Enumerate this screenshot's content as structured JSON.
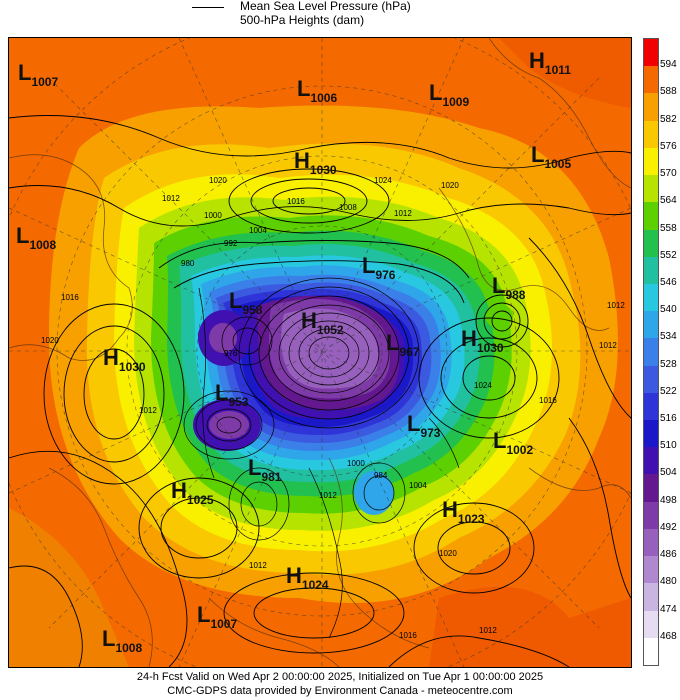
{
  "legend": {
    "line_label": "Mean Sea Level Pressure (hPa)",
    "fill_label": "500-hPa Heights (dam)"
  },
  "colorbar": {
    "ticks": [
      "594",
      "588",
      "582",
      "576",
      "570",
      "564",
      "558",
      "552",
      "546",
      "540",
      "534",
      "528",
      "522",
      "516",
      "510",
      "504",
      "498",
      "492",
      "486",
      "480",
      "474",
      "468"
    ],
    "colors": [
      "#f00000",
      "#f46a00",
      "#f7a000",
      "#f9c800",
      "#f9f000",
      "#b6e400",
      "#5cd000",
      "#22c04e",
      "#20c0a0",
      "#28c8e0",
      "#2fa6ea",
      "#3a80e8",
      "#3c5ae0",
      "#2e34d8",
      "#1a18c8",
      "#4010b0",
      "#641890",
      "#7e3aa6",
      "#9660bc",
      "#b088cf",
      "#cab4e2",
      "#e6dcf2",
      "#ffffff"
    ]
  },
  "systems": [
    {
      "type": "L",
      "value": "1007"
    },
    {
      "type": "L",
      "value": "1006"
    },
    {
      "type": "L",
      "value": "1009"
    },
    {
      "type": "H",
      "value": "1011"
    },
    {
      "type": "H",
      "value": "1030"
    },
    {
      "type": "L",
      "value": "1005"
    },
    {
      "type": "L",
      "value": "1008"
    },
    {
      "type": "L",
      "value": "976"
    },
    {
      "type": "L",
      "value": "988"
    },
    {
      "type": "L",
      "value": "958"
    },
    {
      "type": "H",
      "value": "1052"
    },
    {
      "type": "L",
      "value": "967"
    },
    {
      "type": "H",
      "value": "1030"
    },
    {
      "type": "H",
      "value": "1030"
    },
    {
      "type": "L",
      "value": "953"
    },
    {
      "type": "L",
      "value": "973"
    },
    {
      "type": "L",
      "value": "1002"
    },
    {
      "type": "L",
      "value": "981"
    },
    {
      "type": "H",
      "value": "1025"
    },
    {
      "type": "H",
      "value": "1023"
    },
    {
      "type": "H",
      "value": "1024"
    },
    {
      "type": "L",
      "value": "1007"
    },
    {
      "type": "L",
      "value": "1008"
    }
  ],
  "isobar_labels": [
    "1020",
    "1024",
    "1020",
    "1012",
    "1016",
    "1008",
    "1012",
    "1000",
    "1004",
    "992",
    "980",
    "976",
    "1016",
    "1020",
    "1012",
    "1024",
    "1016",
    "1012",
    "1012",
    "1004",
    "1000",
    "1020",
    "1012",
    "1016",
    "1012",
    "1012",
    "984"
  ],
  "footer": {
    "line1": "24-h Fcst Valid on Wed Apr  2 00:00:00 2025, Initialized on Tue Apr  1 00:00:00 2025",
    "line2": "CMC-GDPS data provided by Environment Canada - meteocentre.com"
  }
}
